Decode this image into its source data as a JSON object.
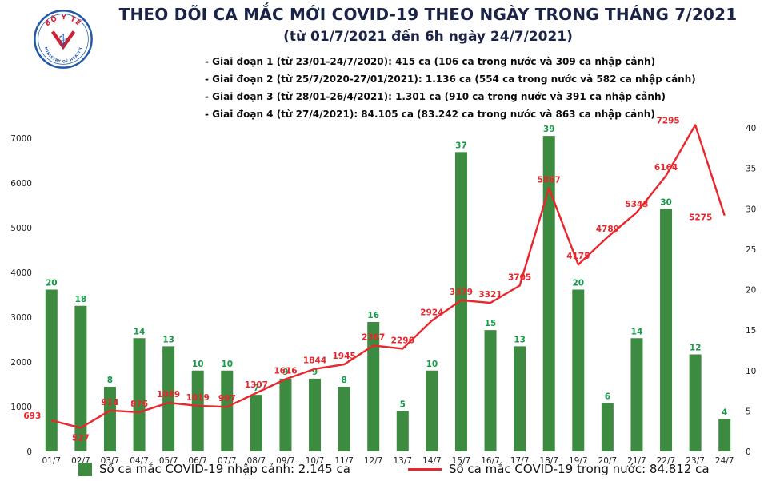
{
  "header": {
    "title": "THEO DÕI CA MẮC MỚI COVID-19 THEO NGÀY TRONG THÁNG 7/2021",
    "subtitle": "(từ 01/7/2021 đến 6h ngày 24/7/2021)",
    "bullets": [
      "- Giai đoạn 1 (từ 23/01-24/7/2020): 415 ca (106 ca trong nước và 309 ca nhập cảnh)",
      "- Giai đoạn 2 (từ 25/7/2020-27/01/2021): 1.136 ca (554 ca trong nước và 582 ca nhập cảnh)",
      "- Giai đoạn 3 (từ 28/01-26/4/2021): 1.301 ca (910 ca trong nước và 391 ca nhập cảnh)",
      "- Giai đoạn 4 (từ 27/4/2021): 84.105 ca (83.242 ca trong nước và 863 ca nhập cảnh)"
    ]
  },
  "logo": {
    "top_text": "BỘ Y TẾ",
    "bottom_text": "MINISTRY OF HEALTH"
  },
  "legend": {
    "imported": "Số ca mắc COVID-19 nhập cảnh: 2.145 ca",
    "domestic": "Số ca mắc COVID-19 trong nước: 84.812 ca"
  },
  "colors": {
    "bar": "#3d8b40",
    "bar_label": "#169b4a",
    "line": "#e8262c",
    "line_label": "#e8262c",
    "title": "#1b2447",
    "logo_blue": "#2059a8",
    "logo_red": "#cf2030"
  },
  "chart_data": {
    "type": "bar",
    "title": "THEO DÕI CA MẮC MỚI COVID-19 THEO NGÀY TRONG THÁNG 7/2021",
    "subtitle": "(từ 01/7/2021 đến 6h ngày 24/7/2021)",
    "categories": [
      "01/7",
      "02/7",
      "03/7",
      "04/7",
      "05/7",
      "06/7",
      "07/7",
      "08/7",
      "09/7",
      "10/7",
      "11/7",
      "12/7",
      "13/7",
      "14/7",
      "15/7",
      "16/7",
      "17/7",
      "18/7",
      "19/7",
      "20/7",
      "21/7",
      "22/7",
      "23/7",
      "24/7"
    ],
    "series": [
      {
        "name": "Số ca mắc COVID-19 nhập cảnh",
        "type": "bar",
        "axis": "right",
        "total_label": "2.145 ca",
        "values": [
          20,
          18,
          8,
          14,
          13,
          10,
          10,
          7,
          9,
          9,
          8,
          16,
          5,
          10,
          37,
          15,
          13,
          39,
          20,
          6,
          14,
          30,
          12,
          4
        ]
      },
      {
        "name": "Số ca mắc COVID-19 trong nước",
        "type": "line",
        "axis": "left",
        "total_label": "84.812 ca",
        "values": [
          693,
          527,
          914,
          876,
          1089,
          1019,
          997,
          1307,
          1616,
          1844,
          1945,
          2367,
          2296,
          2924,
          3379,
          3321,
          3705,
          5887,
          4175,
          4789,
          5343,
          6164,
          7295,
          5275
        ]
      }
    ],
    "axes": {
      "left": {
        "min": 0,
        "max": 7000,
        "ticks": [
          0,
          1000,
          2000,
          3000,
          4000,
          5000,
          6000,
          7000
        ]
      },
      "right": {
        "min": 0,
        "max": 40,
        "ticks": [
          0,
          5,
          10,
          15,
          20,
          25,
          30,
          35,
          40
        ]
      }
    },
    "grid": false,
    "legend_position": "bottom"
  }
}
